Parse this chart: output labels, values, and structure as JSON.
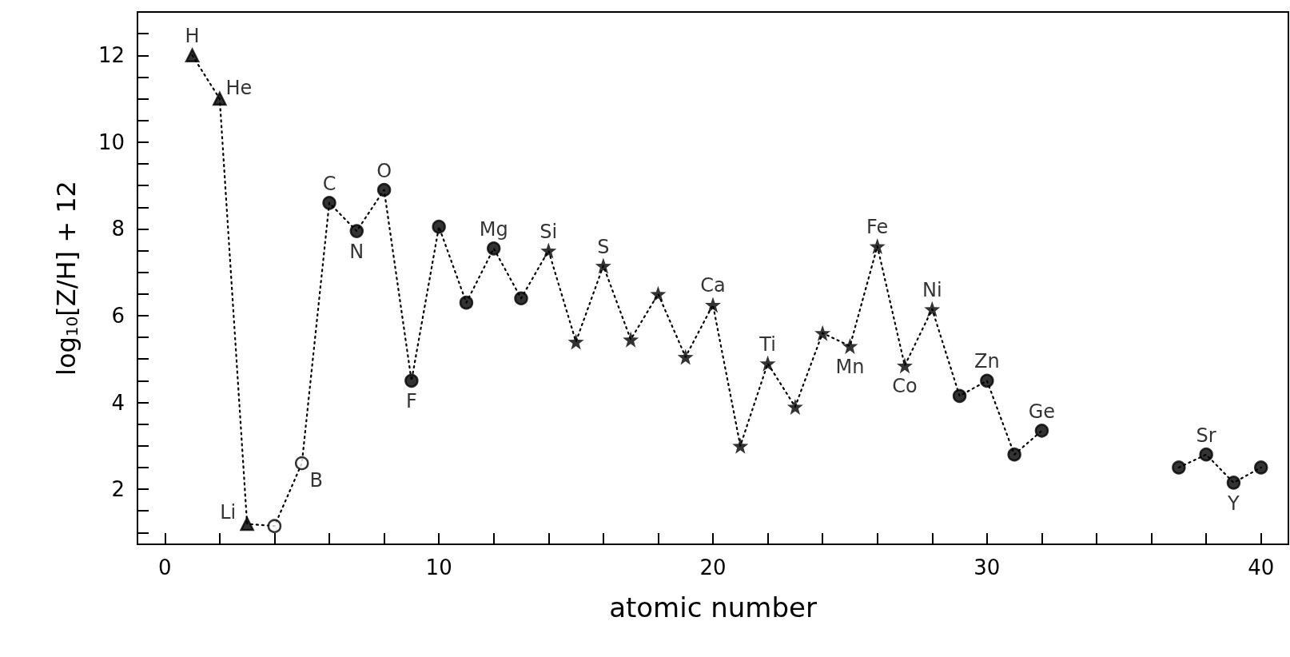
{
  "chart_data": {
    "type": "scatter",
    "xlabel": "atomic number",
    "ylabel": "log$_{10}$[Z/H] + 12",
    "xlim": [
      -1,
      41
    ],
    "ylim": [
      0.73,
      13
    ],
    "xticks": [
      0,
      {
        "value": 2,
        "label": null
      },
      {
        "value": 4,
        "label": null
      },
      {
        "value": 6,
        "label": null
      },
      {
        "value": 8,
        "label": null
      },
      10,
      {
        "value": 12,
        "label": null
      },
      {
        "value": 14,
        "label": null
      },
      {
        "value": 16,
        "label": null
      },
      {
        "value": 18,
        "label": null
      },
      20,
      {
        "value": 22,
        "label": null
      },
      {
        "value": 24,
        "label": null
      },
      {
        "value": 26,
        "label": null
      },
      {
        "value": 28,
        "label": null
      },
      30,
      {
        "value": 32,
        "label": null
      },
      {
        "value": 34,
        "label": null
      },
      {
        "value": 36,
        "label": null
      },
      {
        "value": 38,
        "label": null
      },
      40
    ],
    "yticks": [
      {
        "value": 1,
        "label": null
      },
      {
        "value": 1.5,
        "label": null
      },
      2,
      {
        "value": 2.5,
        "label": null
      },
      {
        "value": 3,
        "label": null
      },
      {
        "value": 3.5,
        "label": null
      },
      4,
      {
        "value": 4.5,
        "label": null
      },
      {
        "value": 5,
        "label": null
      },
      {
        "value": 5.5,
        "label": null
      },
      6,
      {
        "value": 6.5,
        "label": null
      },
      {
        "value": 7,
        "label": null
      },
      {
        "value": 7.5,
        "label": null
      },
      8,
      {
        "value": 8.5,
        "label": null
      },
      {
        "value": 9,
        "label": null
      },
      {
        "value": 9.5,
        "label": null
      },
      10,
      {
        "value": 10.5,
        "label": null
      },
      {
        "value": 11,
        "label": null
      },
      {
        "value": 11.5,
        "label": null
      },
      12,
      {
        "value": 12.5,
        "label": null
      }
    ],
    "grid": false,
    "series": [
      {
        "type": "line",
        "marker": "none",
        "line_style": "dotted",
        "color": "#000000",
        "x": [
          1,
          2,
          3,
          4,
          5,
          6,
          7,
          8,
          9,
          10,
          11,
          12,
          13,
          14,
          15,
          16,
          17,
          18,
          19,
          20,
          21,
          22,
          23,
          24,
          25,
          26,
          27,
          28,
          29,
          30,
          31,
          32,
          33,
          34,
          35,
          36,
          37,
          38,
          39,
          40
        ],
        "values": [
          12.0,
          11.0,
          1.2,
          1.15,
          2.6,
          8.6,
          7.95,
          8.9,
          4.5,
          8.05,
          6.3,
          7.55,
          6.4,
          7.5,
          5.4,
          7.15,
          5.45,
          6.5,
          5.05,
          6.25,
          3.0,
          4.9,
          3.9,
          5.6,
          5.3,
          7.6,
          4.85,
          6.15,
          4.15,
          4.5,
          2.8,
          3.35,
          null,
          null,
          null,
          null,
          2.5,
          2.8,
          2.15,
          2.5
        ]
      },
      {
        "marker": "triangle",
        "color": "#000000",
        "x": [
          1,
          2,
          3
        ],
        "values": [
          12.0,
          11.0,
          1.2
        ]
      },
      {
        "marker": "circle",
        "color": "#ffffff",
        "x": [
          4,
          5
        ],
        "values": [
          1.15,
          2.6
        ]
      },
      {
        "marker": "circle",
        "color": "#000000",
        "x": [
          6,
          7,
          8,
          9,
          10,
          11,
          12,
          13,
          29,
          30,
          31,
          32,
          37,
          38,
          39,
          40
        ],
        "values": [
          8.6,
          7.95,
          8.9,
          4.5,
          8.05,
          6.3,
          7.55,
          6.4,
          4.15,
          4.5,
          2.8,
          3.35,
          2.5,
          2.8,
          2.15,
          2.5
        ]
      },
      {
        "marker": "star",
        "color": "#000000",
        "x": [
          14,
          15,
          16,
          17,
          18,
          19,
          20,
          21,
          22,
          23,
          24,
          25,
          26,
          27,
          28
        ],
        "values": [
          7.5,
          5.4,
          7.15,
          5.45,
          6.5,
          5.05,
          6.25,
          3.0,
          4.9,
          3.9,
          5.6,
          5.3,
          7.6,
          4.85,
          6.15
        ]
      }
    ],
    "annotations": [
      {
        "text": "H",
        "x": 1,
        "y": 12.0
      },
      {
        "text": "He",
        "x": 2,
        "y": 11.0
      },
      {
        "text": "Li",
        "x": 3,
        "y": 1.2
      },
      {
        "text": "B",
        "x": 5,
        "y": 2.6
      },
      {
        "text": "C",
        "x": 6,
        "y": 8.6
      },
      {
        "text": "N",
        "x": 7,
        "y": 7.95
      },
      {
        "text": "O",
        "x": 8,
        "y": 8.9
      },
      {
        "text": "F",
        "x": 9,
        "y": 4.5
      },
      {
        "text": "Mg",
        "x": 12,
        "y": 7.55
      },
      {
        "text": "Si",
        "x": 14,
        "y": 7.5
      },
      {
        "text": "S",
        "x": 16,
        "y": 7.15
      },
      {
        "text": "Ca",
        "x": 20,
        "y": 6.25
      },
      {
        "text": "Ti",
        "x": 22,
        "y": 4.9
      },
      {
        "text": "Mn",
        "x": 25,
        "y": 5.3
      },
      {
        "text": "Fe",
        "x": 26,
        "y": 7.6
      },
      {
        "text": "Co",
        "x": 27,
        "y": 4.85
      },
      {
        "text": "Ni",
        "x": 28,
        "y": 6.15
      },
      {
        "text": "Zn",
        "x": 30,
        "y": 4.5
      },
      {
        "text": "Ge",
        "x": 32,
        "y": 3.35
      },
      {
        "text": "Sr",
        "x": 38,
        "y": 2.8
      },
      {
        "text": "Y",
        "x": 39,
        "y": 2.15
      }
    ]
  }
}
